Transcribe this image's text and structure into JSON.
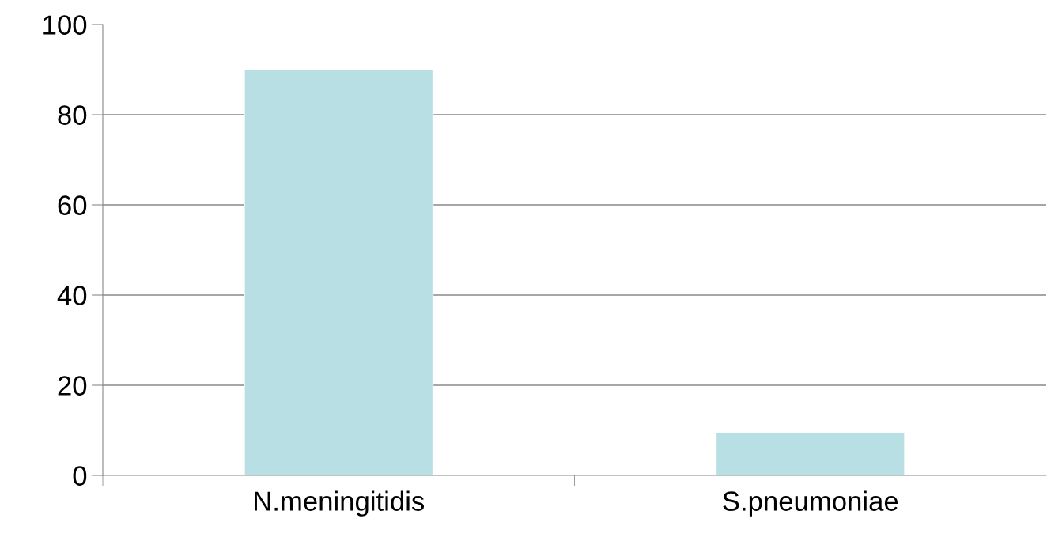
{
  "chart_data": {
    "type": "bar",
    "categories": [
      "N.meningitidis",
      "S.pneumoniae"
    ],
    "values": [
      90,
      9.5
    ],
    "color": "#b8e0e4",
    "ylim": [
      0,
      100
    ],
    "yticks": [
      0,
      20,
      40,
      60,
      80,
      100
    ],
    "grid": "y"
  }
}
